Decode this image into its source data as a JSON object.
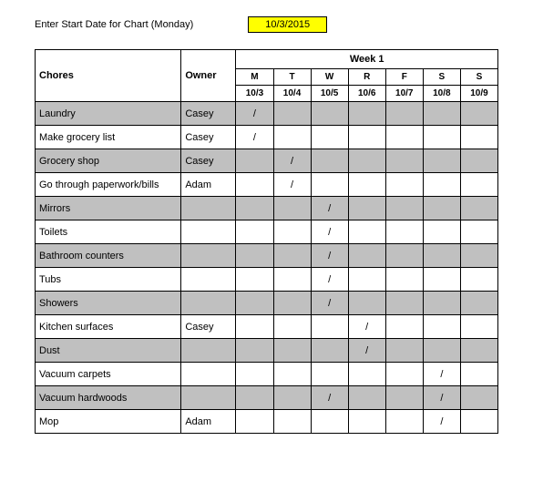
{
  "date_prompt": "Enter Start Date for Chart (Monday)",
  "start_date": "10/3/2015",
  "header": {
    "chores": "Chores",
    "owner": "Owner",
    "week": "Week 1",
    "days": [
      "M",
      "T",
      "W",
      "R",
      "F",
      "S",
      "S"
    ],
    "dates": [
      "10/3",
      "10/4",
      "10/5",
      "10/6",
      "10/7",
      "10/8",
      "10/9"
    ]
  },
  "mark": "/",
  "rows": [
    {
      "chore": "Laundry",
      "owner": "Casey",
      "marks": [
        true,
        false,
        false,
        false,
        false,
        false,
        false
      ],
      "shade": true
    },
    {
      "chore": "Make grocery list",
      "owner": "Casey",
      "marks": [
        true,
        false,
        false,
        false,
        false,
        false,
        false
      ],
      "shade": false
    },
    {
      "chore": "Grocery shop",
      "owner": "Casey",
      "marks": [
        false,
        true,
        false,
        false,
        false,
        false,
        false
      ],
      "shade": true
    },
    {
      "chore": "Go through paperwork/bills",
      "owner": "Adam",
      "marks": [
        false,
        true,
        false,
        false,
        false,
        false,
        false
      ],
      "shade": false
    },
    {
      "chore": "Mirrors",
      "owner": "",
      "marks": [
        false,
        false,
        true,
        false,
        false,
        false,
        false
      ],
      "shade": true
    },
    {
      "chore": "Toilets",
      "owner": "",
      "marks": [
        false,
        false,
        true,
        false,
        false,
        false,
        false
      ],
      "shade": false
    },
    {
      "chore": "Bathroom counters",
      "owner": "",
      "marks": [
        false,
        false,
        true,
        false,
        false,
        false,
        false
      ],
      "shade": true
    },
    {
      "chore": "Tubs",
      "owner": "",
      "marks": [
        false,
        false,
        true,
        false,
        false,
        false,
        false
      ],
      "shade": false
    },
    {
      "chore": "Showers",
      "owner": "",
      "marks": [
        false,
        false,
        true,
        false,
        false,
        false,
        false
      ],
      "shade": true
    },
    {
      "chore": "Kitchen surfaces",
      "owner": "Casey",
      "marks": [
        false,
        false,
        false,
        true,
        false,
        false,
        false
      ],
      "shade": false
    },
    {
      "chore": "Dust",
      "owner": "",
      "marks": [
        false,
        false,
        false,
        true,
        false,
        false,
        false
      ],
      "shade": true
    },
    {
      "chore": "Vacuum carpets",
      "owner": "",
      "marks": [
        false,
        false,
        false,
        false,
        false,
        true,
        false
      ],
      "shade": false
    },
    {
      "chore": "Vacuum hardwoods",
      "owner": "",
      "marks": [
        false,
        false,
        true,
        false,
        false,
        true,
        false
      ],
      "shade": true
    },
    {
      "chore": "Mop",
      "owner": "Adam",
      "marks": [
        false,
        false,
        false,
        false,
        false,
        true,
        false
      ],
      "shade": false
    }
  ],
  "colors": {
    "date_box_bg": "#ffff00",
    "shade_bg": "#c0c0c0",
    "border": "#000000",
    "page_bg": "#ffffff"
  }
}
